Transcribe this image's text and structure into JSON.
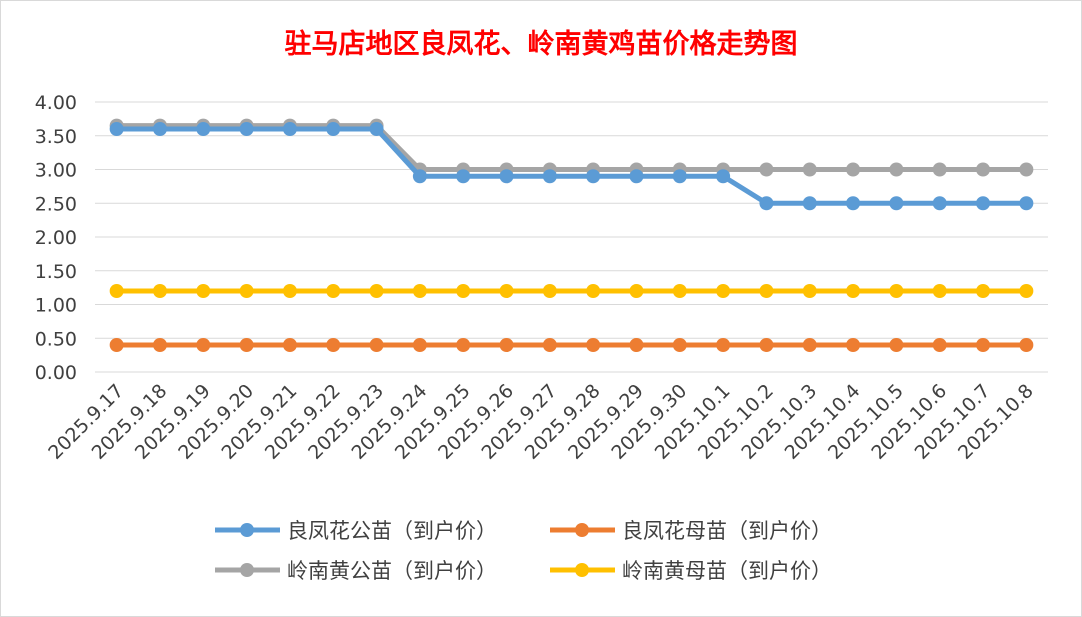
{
  "chart_data": {
    "type": "line",
    "title": "驻马店地区良凤花、岭南黄鸡苗价格走势图",
    "title_color": "#ff0000",
    "categories": [
      "2025.9.17",
      "2025.9.18",
      "2025.9.19",
      "2025.9.20",
      "2025.9.21",
      "2025.9.22",
      "2025.9.23",
      "2025.9.24",
      "2025.9.25",
      "2025.9.26",
      "2025.9.27",
      "2025.9.28",
      "2025.9.29",
      "2025.9.30",
      "2025.10.1",
      "2025.10.2",
      "2025.10.3",
      "2025.10.4",
      "2025.10.5",
      "2025.10.6",
      "2025.10.7",
      "2025.10.8"
    ],
    "y_ticks": [
      "0.00",
      "0.50",
      "1.00",
      "1.50",
      "2.00",
      "2.50",
      "3.00",
      "3.50",
      "4.00"
    ],
    "ylim": [
      0,
      4
    ],
    "grid": true,
    "legend_position": "bottom",
    "series": [
      {
        "name": "良凤花公苗（到户价）",
        "color": "#5b9bd5",
        "values": [
          3.6,
          3.6,
          3.6,
          3.6,
          3.6,
          3.6,
          3.6,
          2.9,
          2.9,
          2.9,
          2.9,
          2.9,
          2.9,
          2.9,
          2.9,
          2.5,
          2.5,
          2.5,
          2.5,
          2.5,
          2.5,
          2.5
        ]
      },
      {
        "name": "良凤花母苗（到户价）",
        "color": "#ed7d31",
        "values": [
          0.4,
          0.4,
          0.4,
          0.4,
          0.4,
          0.4,
          0.4,
          0.4,
          0.4,
          0.4,
          0.4,
          0.4,
          0.4,
          0.4,
          0.4,
          0.4,
          0.4,
          0.4,
          0.4,
          0.4,
          0.4,
          0.4
        ]
      },
      {
        "name": "岭南黄公苗（到户价）",
        "color": "#a5a5a5",
        "values": [
          3.65,
          3.65,
          3.65,
          3.65,
          3.65,
          3.65,
          3.65,
          3.0,
          3.0,
          3.0,
          3.0,
          3.0,
          3.0,
          3.0,
          3.0,
          3.0,
          3.0,
          3.0,
          3.0,
          3.0,
          3.0,
          3.0
        ]
      },
      {
        "name": "岭南黄母苗（到户价）",
        "color": "#ffc000",
        "values": [
          1.2,
          1.2,
          1.2,
          1.2,
          1.2,
          1.2,
          1.2,
          1.2,
          1.2,
          1.2,
          1.2,
          1.2,
          1.2,
          1.2,
          1.2,
          1.2,
          1.2,
          1.2,
          1.2,
          1.2,
          1.2,
          1.2
        ]
      }
    ]
  }
}
